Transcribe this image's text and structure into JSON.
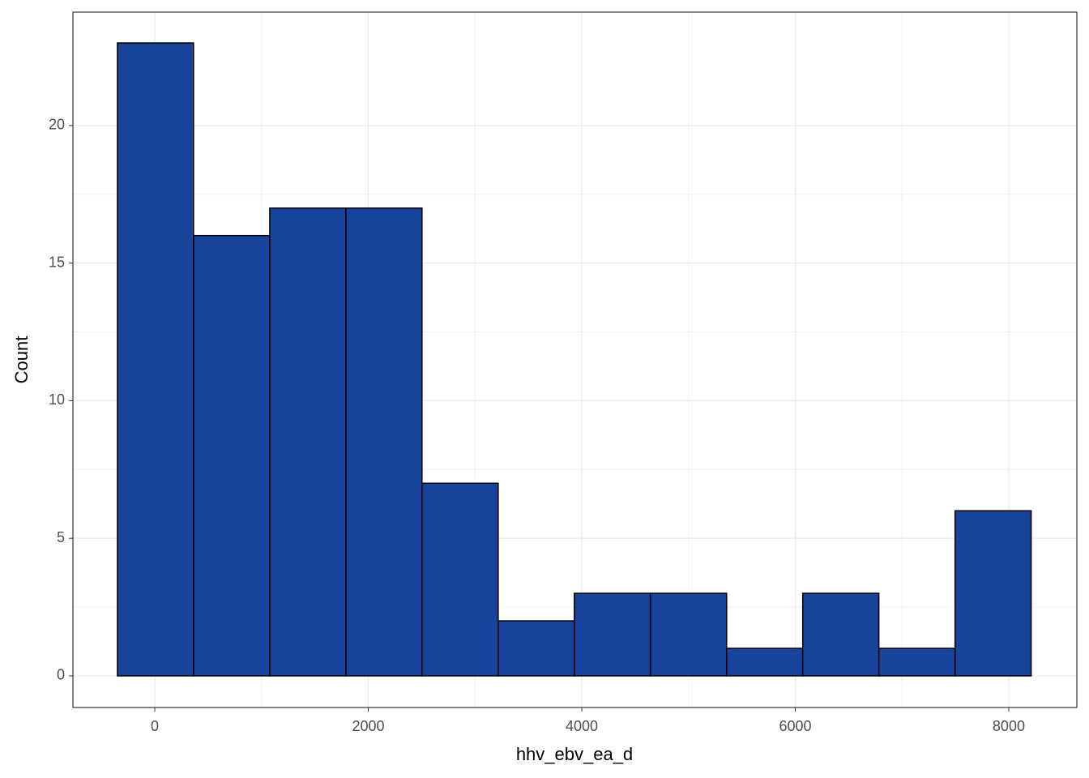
{
  "chart_data": {
    "type": "histogram",
    "x_label": "hhv_ebv_ea_d",
    "y_label": "Count",
    "bins": [
      -350,
      363,
      1077,
      1790,
      2503,
      3217,
      3930,
      4643,
      5357,
      6070,
      6783,
      7497,
      8210
    ],
    "values": [
      23,
      16,
      17,
      17,
      7,
      2,
      3,
      3,
      1,
      3,
      1,
      6
    ],
    "color": "#17439a",
    "edge_color": "#000000",
    "xlim": [
      -767,
      8638
    ],
    "ylim": [
      -1.15,
      24.12
    ],
    "xticks": [
      0,
      2000,
      4000,
      6000,
      8000
    ],
    "yticks": [
      0,
      5,
      10,
      15,
      20
    ],
    "grid": true
  }
}
